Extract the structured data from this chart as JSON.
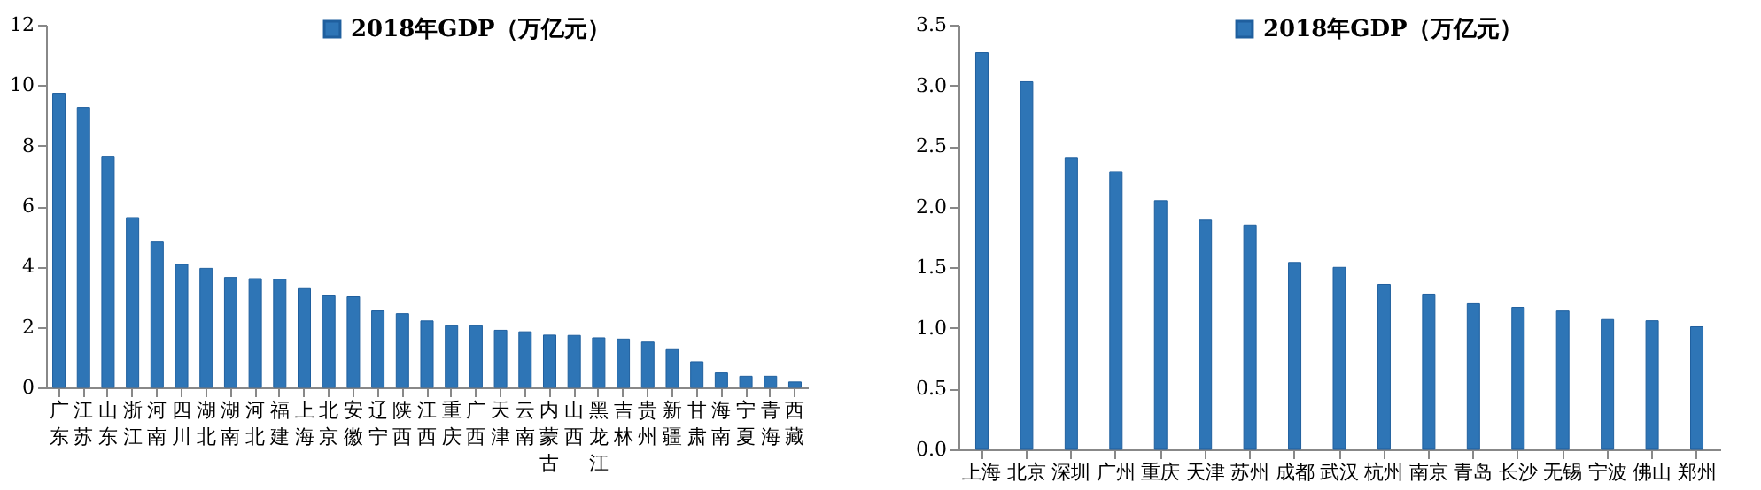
{
  "chart_data": [
    {
      "type": "bar",
      "categories": [
        "广东",
        "江苏",
        "山东",
        "浙江",
        "河南",
        "四川",
        "湖北",
        "湖南",
        "河北",
        "福建",
        "上海",
        "北京",
        "安徽",
        "辽宁",
        "陕西",
        "江西",
        "重庆",
        "广西",
        "天津",
        "云南",
        "内蒙古",
        "山西",
        "黑龙江",
        "吉林",
        "贵州",
        "新疆",
        "甘肃",
        "海南",
        "宁夏",
        "青海",
        "西藏"
      ],
      "series": [
        {
          "name": "2018年GDP（万亿元）",
          "color": "#2e75b6",
          "values": [
            9.73,
            9.26,
            7.65,
            5.62,
            4.81,
            4.07,
            3.94,
            3.64,
            3.6,
            3.58,
            3.27,
            3.03,
            3.0,
            2.53,
            2.44,
            2.2,
            2.04,
            2.04,
            1.89,
            1.84,
            1.73,
            1.72,
            1.64,
            1.6,
            1.5,
            1.25,
            0.85,
            0.48,
            0.37,
            0.37,
            0.18
          ]
        }
      ],
      "ylim": [
        0,
        12
      ],
      "yticks": [
        0,
        2,
        4,
        6,
        8,
        10,
        12
      ],
      "grid": false,
      "legend": "top"
    },
    {
      "type": "bar",
      "categories": [
        "上海",
        "北京",
        "深圳",
        "广州",
        "重庆",
        "天津",
        "苏州",
        "成都",
        "武汉",
        "杭州",
        "南京",
        "青岛",
        "长沙",
        "无锡",
        "宁波",
        "佛山",
        "郑州"
      ],
      "series": [
        {
          "name": "2018年GDP（万亿元）",
          "color": "#2e75b6",
          "values": [
            3.27,
            3.03,
            2.4,
            2.29,
            2.05,
            1.89,
            1.85,
            1.54,
            1.5,
            1.36,
            1.28,
            1.2,
            1.17,
            1.14,
            1.07,
            1.06,
            1.01
          ]
        }
      ],
      "ylim": [
        0,
        3.5
      ],
      "yticks": [
        {
          "value": 0,
          "label": "0.0"
        },
        {
          "value": 0.5,
          "label": "0.5"
        },
        {
          "value": 1,
          "label": "1.0"
        },
        {
          "value": 1.5,
          "label": "1.5"
        },
        {
          "value": 2,
          "label": "2.0"
        },
        {
          "value": 2.5,
          "label": "2.5"
        },
        {
          "value": 3,
          "label": "3.0"
        },
        {
          "value": 3.5,
          "label": "3.5"
        }
      ],
      "grid": false,
      "legend": "top"
    }
  ]
}
